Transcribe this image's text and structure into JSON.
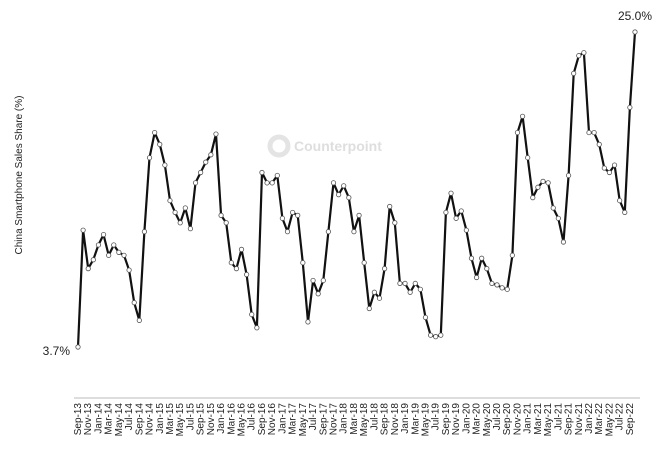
{
  "chart_data": {
    "type": "line",
    "ylabel": "China Smartphone  Sales Share (%)",
    "watermark": "Counterpoint",
    "color": "#111111",
    "ylim": [
      3.7,
      25.0
    ],
    "categories": [
      "Sep-13",
      null,
      "Nov-13",
      null,
      "Jan-14",
      null,
      "Mar-14",
      null,
      "May-14",
      null,
      "Jul-14",
      null,
      "Sep-14",
      null,
      "Nov-14",
      null,
      "Jan-15",
      null,
      "Mar-15",
      null,
      "May-15",
      null,
      "Jul-15",
      null,
      "Sep-15",
      null,
      "Nov-15",
      null,
      "Jan-16",
      null,
      "Mar-16",
      null,
      "May-16",
      null,
      "Jul-16",
      null,
      "Sep-16",
      null,
      "Nov-16",
      null,
      "Jan-17",
      null,
      "Mar-17",
      null,
      "May-17",
      null,
      "Jul-17",
      null,
      "Sep-17",
      null,
      "Nov-17",
      null,
      "Jan-18",
      null,
      "Mar-18",
      null,
      "May-18",
      null,
      "Jul-18",
      null,
      "Sep-18",
      null,
      "Nov-18",
      null,
      "Jan-19",
      null,
      "Mar-19",
      null,
      "May-19",
      null,
      "Jul-19",
      null,
      "Sep-19",
      null,
      "Nov-19",
      null,
      "Jan-20",
      null,
      "Mar-20",
      null,
      "May-20",
      null,
      "Jul-20",
      null,
      "Sep-20",
      null,
      "Nov-20",
      null,
      "Jan-21",
      null,
      "Mar-21",
      null,
      "May-21",
      null,
      "Jul-21",
      null,
      "Sep-21",
      null,
      "Nov-21",
      null,
      "Jan-22",
      null,
      "Mar-22",
      null,
      "May-22",
      null,
      "Jul-22",
      null,
      "Sep-22",
      null
    ],
    "values": [
      3.7,
      11.6,
      9.0,
      9.6,
      10.6,
      11.3,
      9.9,
      10.6,
      10.1,
      9.9,
      8.9,
      6.7,
      5.5,
      11.5,
      16.5,
      18.2,
      17.4,
      16.0,
      13.6,
      12.8,
      12.1,
      13.1,
      11.7,
      14.8,
      15.5,
      16.2,
      16.7,
      18.1,
      12.6,
      12.1,
      9.4,
      9.0,
      10.3,
      8.6,
      5.9,
      5.0,
      15.5,
      14.8,
      14.8,
      15.3,
      12.4,
      11.5,
      12.8,
      12.6,
      9.4,
      5.4,
      8.2,
      7.3,
      8.2,
      11.5,
      14.8,
      14.0,
      14.6,
      13.8,
      11.5,
      12.6,
      9.4,
      6.3,
      7.4,
      7.0,
      9.0,
      13.2,
      12.1,
      8.0,
      8.0,
      7.4,
      8.0,
      7.6,
      5.7,
      4.5,
      4.4,
      4.5,
      12.8,
      14.1,
      12.4,
      12.9,
      11.6,
      9.7,
      8.4,
      9.7,
      9.0,
      8.0,
      7.9,
      7.7,
      7.6,
      9.9,
      18.2,
      19.3,
      16.5,
      13.8,
      14.5,
      14.9,
      14.8,
      13.1,
      12.4,
      10.8,
      15.3,
      22.2,
      23.4,
      23.6,
      18.2,
      18.2,
      17.4,
      15.8,
      15.5,
      16.0,
      13.6,
      12.8,
      19.9,
      25.0
    ],
    "value_labels": [
      "3.7%",
      null,
      null,
      null,
      null,
      null,
      null,
      null,
      null,
      null,
      null,
      null,
      null,
      null,
      null,
      null,
      null,
      null,
      null,
      null,
      null,
      null,
      null,
      null,
      null,
      null,
      null,
      null,
      null,
      null,
      null,
      null,
      null,
      null,
      null,
      null,
      null,
      null,
      null,
      null,
      null,
      null,
      null,
      null,
      null,
      null,
      null,
      null,
      null,
      null,
      null,
      null,
      null,
      null,
      null,
      null,
      null,
      null,
      null,
      null,
      null,
      null,
      null,
      null,
      null,
      null,
      null,
      null,
      null,
      null,
      null,
      null,
      null,
      null,
      null,
      null,
      null,
      null,
      null,
      null,
      null,
      null,
      null,
      null,
      null,
      null,
      null,
      null,
      null,
      null,
      null,
      null,
      null,
      null,
      null,
      null,
      null,
      null,
      null,
      null,
      null,
      null,
      null,
      null,
      null,
      null,
      null,
      null,
      null,
      "25.0%"
    ]
  }
}
